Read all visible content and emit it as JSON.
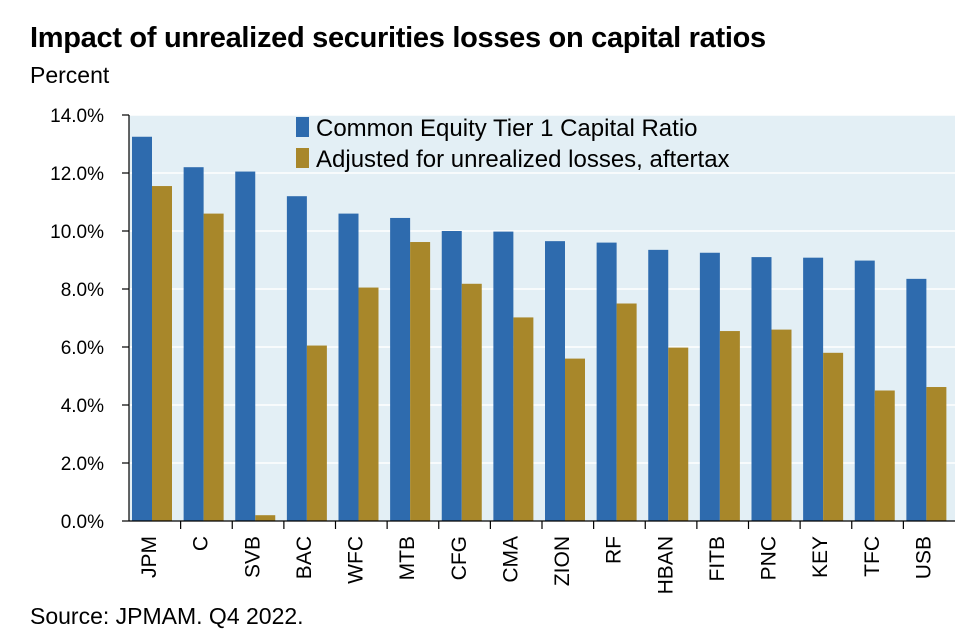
{
  "title": "Impact of unrealized securities losses on capital ratios",
  "subtitle": "Percent",
  "source": "Source: JPMAM. Q4 2022.",
  "colors": {
    "series1": "#2E6BAE",
    "series2": "#A8872A",
    "plot_bg": "#E3EFF5"
  },
  "chart_data": {
    "type": "bar",
    "title": "Impact of unrealized securities losses on capital ratios",
    "ylabel": "Percent",
    "ylim": [
      0,
      14
    ],
    "yticks": [
      "0.0%",
      "2.0%",
      "4.0%",
      "6.0%",
      "8.0%",
      "10.0%",
      "12.0%",
      "14.0%"
    ],
    "categories": [
      "JPM",
      "C",
      "SVB",
      "BAC",
      "WFC",
      "MTB",
      "CFG",
      "CMA",
      "ZION",
      "RF",
      "HBAN",
      "FITB",
      "PNC",
      "KEY",
      "TFC",
      "USB"
    ],
    "series": [
      {
        "name": "Common Equity Tier 1 Capital Ratio",
        "values": [
          13.25,
          12.2,
          12.05,
          11.2,
          10.6,
          10.45,
          10.0,
          9.98,
          9.65,
          9.6,
          9.35,
          9.25,
          9.1,
          9.08,
          8.98,
          8.35
        ]
      },
      {
        "name": "Adjusted for unrealized losses, aftertax",
        "values": [
          11.55,
          10.6,
          0.2,
          6.05,
          8.05,
          9.62,
          8.18,
          7.02,
          5.6,
          7.5,
          5.98,
          6.55,
          6.6,
          5.8,
          4.5,
          4.62
        ]
      }
    ],
    "legend_position": "top-right",
    "grid": true
  }
}
